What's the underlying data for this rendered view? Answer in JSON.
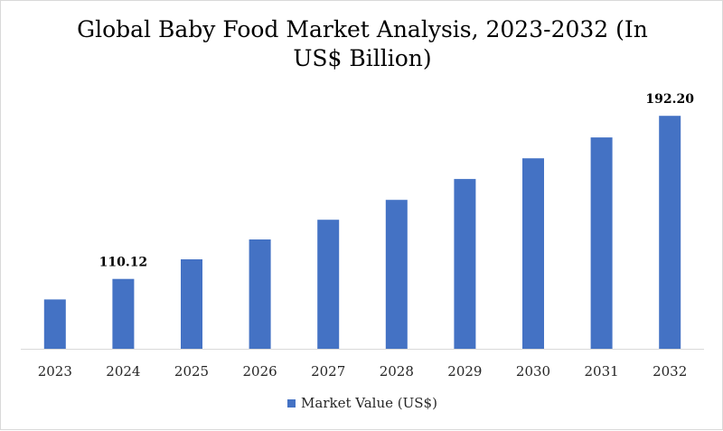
{
  "chart_data": {
    "type": "bar",
    "title": "Global Baby Food Market Analysis, 2023-2032 (In US$ Billion)",
    "categories": [
      "2023",
      "2024",
      "2025",
      "2026",
      "2027",
      "2028",
      "2029",
      "2030",
      "2031",
      "2032"
    ],
    "series": [
      {
        "name": "Market Value (US$)",
        "color": "#4472c4",
        "values": [
          99.8,
          110.12,
          120.0,
          130.0,
          139.9,
          149.9,
          160.4,
          170.8,
          181.3,
          192.2
        ]
      }
    ],
    "data_labels": [
      {
        "category": "2024",
        "text": "110.12"
      },
      {
        "category": "2032",
        "text": "192.20"
      }
    ],
    "xlabel": "",
    "ylabel": "",
    "ylim": [
      75,
      200
    ],
    "grid": false,
    "y_axis_visible": false,
    "legend_position": "bottom"
  }
}
